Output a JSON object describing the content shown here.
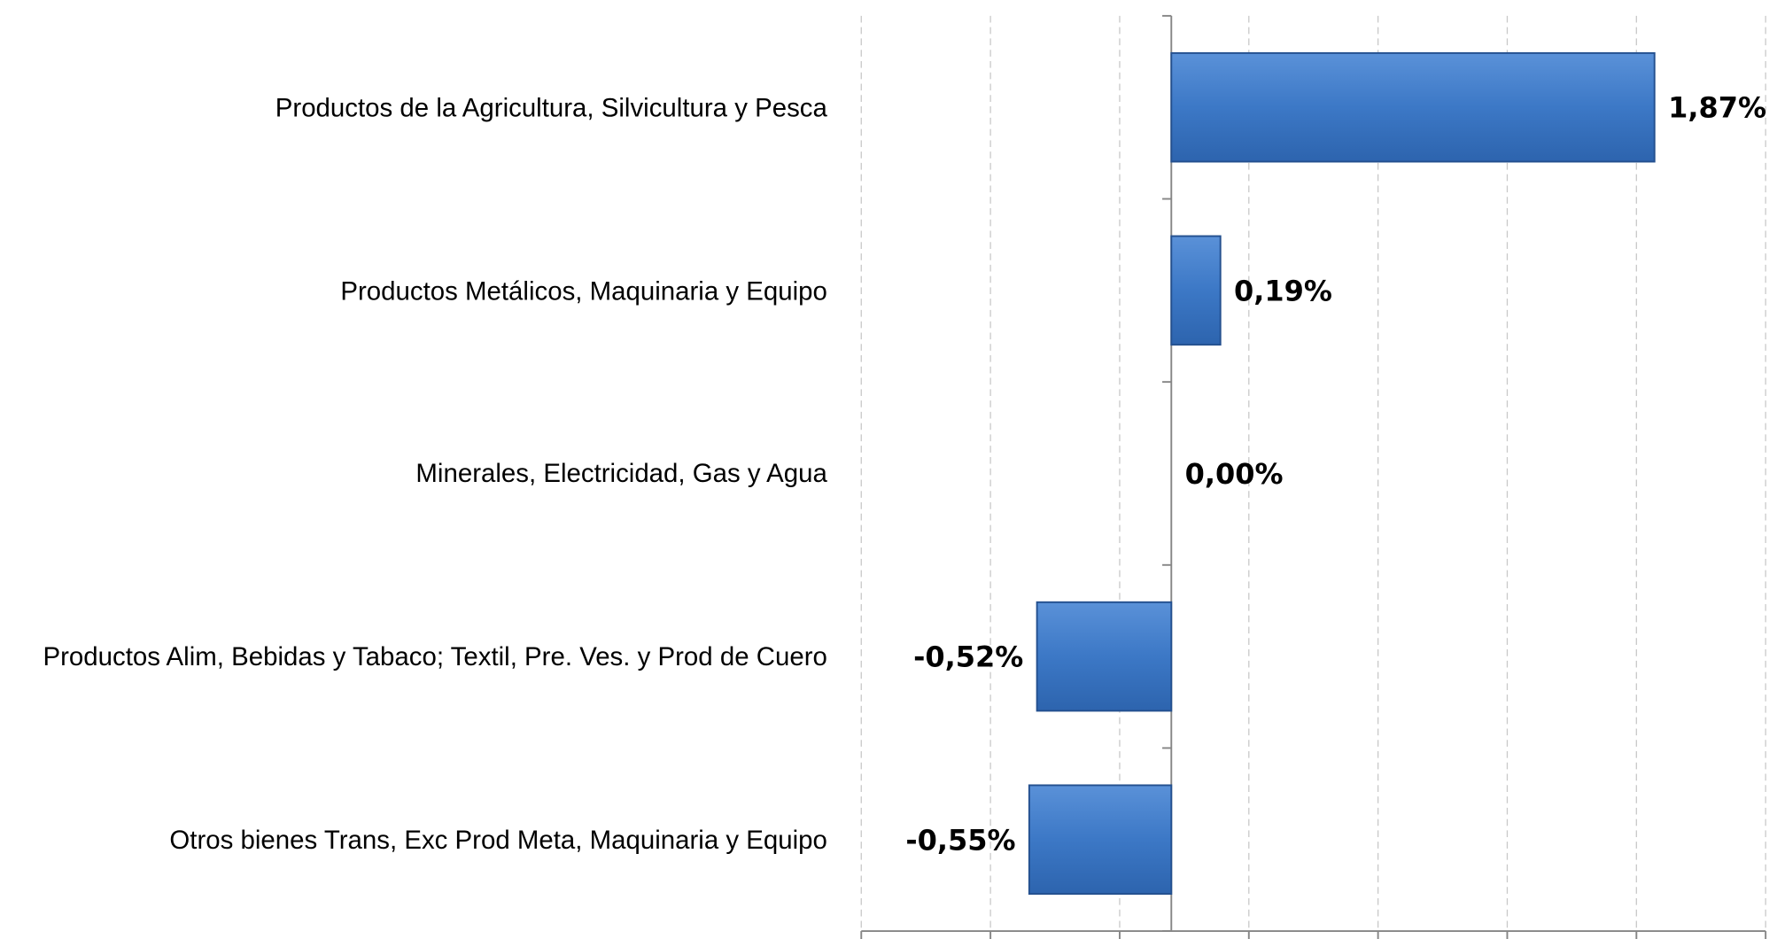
{
  "chart_data": {
    "type": "bar",
    "orientation": "horizontal",
    "categories": [
      "Productos de la Agricultura, Silvicultura y Pesca",
      "Productos Metálicos, Maquinaria y Equipo",
      "Minerales, Electricidad, Gas y Agua",
      "Productos  Alim, Bebidas y Tabaco; Textil, Pre. Ves. y Prod de Cuero",
      "Otros bienes Trans, Exc Prod Meta, Maquinaria y Equipo"
    ],
    "values": [
      1.87,
      0.19,
      0.0,
      -0.52,
      -0.55
    ],
    "value_labels": [
      "1,87%",
      "0,19%",
      "0,00%",
      "-0,52%",
      "-0,55%"
    ],
    "color": "#3c78c6",
    "xlim": [
      -1.2,
      2.3
    ],
    "xticks": [
      -1.2,
      -0.7,
      -0.2,
      0.3,
      0.8,
      1.3,
      1.8,
      2.3
    ],
    "grid": true
  }
}
